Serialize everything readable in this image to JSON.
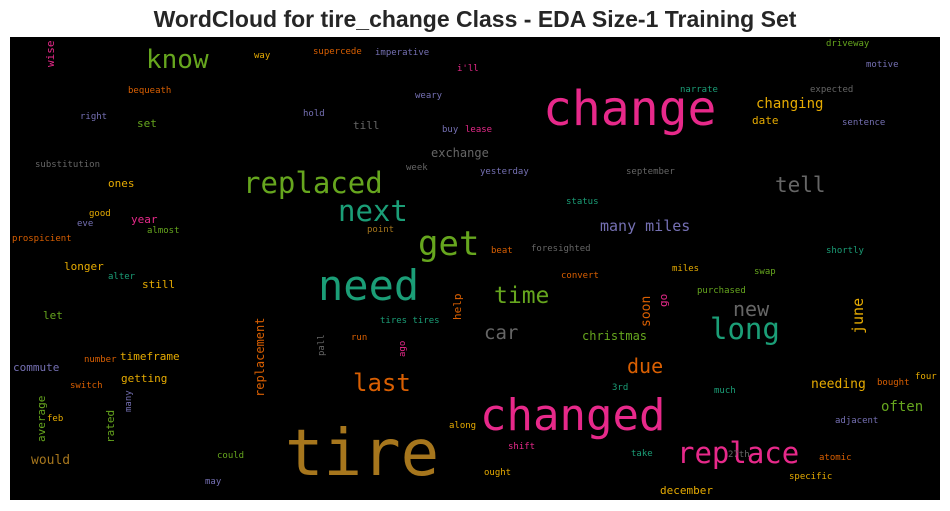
{
  "title": "WordCloud for tire_change Class - EDA Size-1 Training Set",
  "chart_data": {
    "type": "wordcloud",
    "words": [
      {
        "text": "tire",
        "color": "#a6761d",
        "size": 64,
        "vertical": false
      },
      {
        "text": "change",
        "color": "#e7298a",
        "size": 48,
        "vertical": false
      },
      {
        "text": "changed",
        "color": "#e7298a",
        "size": 44,
        "vertical": false
      },
      {
        "text": "need",
        "color": "#1b9e77",
        "size": 42,
        "vertical": false
      },
      {
        "text": "get",
        "color": "#66a61e",
        "size": 34,
        "vertical": false
      },
      {
        "text": "replaced",
        "color": "#66a61e",
        "size": 29,
        "vertical": false
      },
      {
        "text": "replace",
        "color": "#e7298a",
        "size": 29,
        "vertical": false
      },
      {
        "text": "next",
        "color": "#1b9e77",
        "size": 29,
        "vertical": false
      },
      {
        "text": "long",
        "color": "#1b9e77",
        "size": 29,
        "vertical": false
      },
      {
        "text": "know",
        "color": "#66a61e",
        "size": 26,
        "vertical": false
      },
      {
        "text": "last",
        "color": "#d95f02",
        "size": 24,
        "vertical": false
      },
      {
        "text": "time",
        "color": "#66a61e",
        "size": 23,
        "vertical": false
      },
      {
        "text": "tell",
        "color": "#666666",
        "size": 21,
        "vertical": false
      },
      {
        "text": "new",
        "color": "#666666",
        "size": 20,
        "vertical": false
      },
      {
        "text": "due",
        "color": "#d95f02",
        "size": 20,
        "vertical": false
      },
      {
        "text": "car",
        "color": "#666666",
        "size": 19,
        "vertical": false
      },
      {
        "text": "many miles",
        "color": "#7570b3",
        "size": 15,
        "vertical": false
      },
      {
        "text": "changing",
        "color": "#e6ab02",
        "size": 14,
        "vertical": false
      },
      {
        "text": "june",
        "color": "#e6ab02",
        "size": 15,
        "vertical": true
      },
      {
        "text": "often",
        "color": "#66a61e",
        "size": 14,
        "vertical": false
      },
      {
        "text": "needing",
        "color": "#e6ab02",
        "size": 13,
        "vertical": false
      },
      {
        "text": "soon",
        "color": "#d95f02",
        "size": 13,
        "vertical": true
      },
      {
        "text": "would",
        "color": "#a6761d",
        "size": 13,
        "vertical": false
      },
      {
        "text": "replacement",
        "color": "#d95f02",
        "size": 12,
        "vertical": true
      },
      {
        "text": "christmas",
        "color": "#66a61e",
        "size": 12,
        "vertical": false
      },
      {
        "text": "exchange",
        "color": "#666666",
        "size": 12,
        "vertical": false
      },
      {
        "text": "date",
        "color": "#e6ab02",
        "size": 11,
        "vertical": false
      },
      {
        "text": "getting",
        "color": "#e6ab02",
        "size": 11,
        "vertical": false
      },
      {
        "text": "timeframe",
        "color": "#e6ab02",
        "size": 11,
        "vertical": false
      },
      {
        "text": "still",
        "color": "#e6ab02",
        "size": 11,
        "vertical": false
      },
      {
        "text": "longer",
        "color": "#e6ab02",
        "size": 11,
        "vertical": false
      },
      {
        "text": "ones",
        "color": "#e6ab02",
        "size": 11,
        "vertical": false
      },
      {
        "text": "commute",
        "color": "#7570b3",
        "size": 11,
        "vertical": false
      },
      {
        "text": "till",
        "color": "#666666",
        "size": 11,
        "vertical": false
      },
      {
        "text": "set",
        "color": "#66a61e",
        "size": 11,
        "vertical": false
      },
      {
        "text": "let",
        "color": "#66a61e",
        "size": 11,
        "vertical": false
      },
      {
        "text": "year",
        "color": "#e7298a",
        "size": 11,
        "vertical": false
      },
      {
        "text": "december",
        "color": "#e6ab02",
        "size": 11,
        "vertical": false
      },
      {
        "text": "average",
        "color": "#66a61e",
        "size": 11,
        "vertical": true
      },
      {
        "text": "rated",
        "color": "#66a61e",
        "size": 11,
        "vertical": true
      },
      {
        "text": "help",
        "color": "#d95f02",
        "size": 11,
        "vertical": true
      },
      {
        "text": "go",
        "color": "#e7298a",
        "size": 11,
        "vertical": true
      },
      {
        "text": "wise",
        "color": "#e7298a",
        "size": 11,
        "vertical": true
      },
      {
        "text": "motive",
        "color": "#7570b3",
        "size": 9,
        "vertical": false
      },
      {
        "text": "driveway",
        "color": "#66a61e",
        "size": 9,
        "vertical": false
      },
      {
        "text": "expected",
        "color": "#666666",
        "size": 9,
        "vertical": false
      },
      {
        "text": "sentence",
        "color": "#7570b3",
        "size": 9,
        "vertical": false
      },
      {
        "text": "narrate",
        "color": "#1b9e77",
        "size": 9,
        "vertical": false
      },
      {
        "text": "weary",
        "color": "#7570b3",
        "size": 9,
        "vertical": false
      },
      {
        "text": "hold",
        "color": "#7570b3",
        "size": 9,
        "vertical": false
      },
      {
        "text": "buy",
        "color": "#7570b3",
        "size": 9,
        "vertical": false
      },
      {
        "text": "lease",
        "color": "#e7298a",
        "size": 9,
        "vertical": false
      },
      {
        "text": "yesterday",
        "color": "#7570b3",
        "size": 9,
        "vertical": false
      },
      {
        "text": "september",
        "color": "#666666",
        "size": 9,
        "vertical": false
      },
      {
        "text": "week",
        "color": "#666666",
        "size": 9,
        "vertical": false
      },
      {
        "text": "status",
        "color": "#1b9e77",
        "size": 9,
        "vertical": false
      },
      {
        "text": "foresighted",
        "color": "#666666",
        "size": 9,
        "vertical": false
      },
      {
        "text": "beat",
        "color": "#d95f02",
        "size": 9,
        "vertical": false
      },
      {
        "text": "shortly",
        "color": "#1b9e77",
        "size": 9,
        "vertical": false
      },
      {
        "text": "convert",
        "color": "#d95f02",
        "size": 9,
        "vertical": false
      },
      {
        "text": "miles",
        "color": "#e6ab02",
        "size": 9,
        "vertical": false
      },
      {
        "text": "swap",
        "color": "#66a61e",
        "size": 9,
        "vertical": false
      },
      {
        "text": "purchased",
        "color": "#66a61e",
        "size": 9,
        "vertical": false
      },
      {
        "text": "point",
        "color": "#a6761d",
        "size": 9,
        "vertical": false
      },
      {
        "text": "tires tires",
        "color": "#1b9e77",
        "size": 9,
        "vertical": false
      },
      {
        "text": "run",
        "color": "#d95f02",
        "size": 9,
        "vertical": false
      },
      {
        "text": "ago",
        "color": "#e7298a",
        "size": 9,
        "vertical": true
      },
      {
        "text": "pall",
        "color": "#666666",
        "size": 9,
        "vertical": true
      },
      {
        "text": "3rd",
        "color": "#1b9e77",
        "size": 9,
        "vertical": false
      },
      {
        "text": "much",
        "color": "#1b9e77",
        "size": 9,
        "vertical": false
      },
      {
        "text": "bought",
        "color": "#d95f02",
        "size": 9,
        "vertical": false
      },
      {
        "text": "four",
        "color": "#e6ab02",
        "size": 9,
        "vertical": false
      },
      {
        "text": "adjacent",
        "color": "#7570b3",
        "size": 9,
        "vertical": false
      },
      {
        "text": "atomic",
        "color": "#d95f02",
        "size": 9,
        "vertical": false
      },
      {
        "text": "specific",
        "color": "#e6ab02",
        "size": 9,
        "vertical": false
      },
      {
        "text": "27th",
        "color": "#666666",
        "size": 9,
        "vertical": false
      },
      {
        "text": "take",
        "color": "#1b9e77",
        "size": 9,
        "vertical": false
      },
      {
        "text": "ought",
        "color": "#e6ab02",
        "size": 9,
        "vertical": false
      },
      {
        "text": "shift",
        "color": "#e7298a",
        "size": 9,
        "vertical": false
      },
      {
        "text": "along",
        "color": "#e6ab02",
        "size": 9,
        "vertical": false
      },
      {
        "text": "could",
        "color": "#66a61e",
        "size": 9,
        "vertical": false
      },
      {
        "text": "may",
        "color": "#7570b3",
        "size": 9,
        "vertical": false
      },
      {
        "text": "feb",
        "color": "#e6ab02",
        "size": 9,
        "vertical": false
      },
      {
        "text": "many",
        "color": "#7570b3",
        "size": 9,
        "vertical": true
      },
      {
        "text": "switch",
        "color": "#d95f02",
        "size": 9,
        "vertical": false
      },
      {
        "text": "number",
        "color": "#d95f02",
        "size": 9,
        "vertical": false
      },
      {
        "text": "alter",
        "color": "#1b9e77",
        "size": 9,
        "vertical": false
      },
      {
        "text": "almost",
        "color": "#66a61e",
        "size": 9,
        "vertical": false
      },
      {
        "text": "prospicient",
        "color": "#d95f02",
        "size": 9,
        "vertical": false
      },
      {
        "text": "eve",
        "color": "#7570b3",
        "size": 9,
        "vertical": false
      },
      {
        "text": "good",
        "color": "#e6ab02",
        "size": 9,
        "vertical": false
      },
      {
        "text": "substitution",
        "color": "#666666",
        "size": 9,
        "vertical": false
      },
      {
        "text": "right",
        "color": "#7570b3",
        "size": 9,
        "vertical": false
      },
      {
        "text": "bequeath",
        "color": "#d95f02",
        "size": 9,
        "vertical": false
      },
      {
        "text": "way",
        "color": "#e6ab02",
        "size": 9,
        "vertical": false
      },
      {
        "text": "supercede",
        "color": "#d95f02",
        "size": 9,
        "vertical": false
      },
      {
        "text": "imperative",
        "color": "#7570b3",
        "size": 9,
        "vertical": false
      },
      {
        "text": "i'll",
        "color": "#e7298a",
        "size": 9,
        "vertical": false
      }
    ]
  }
}
